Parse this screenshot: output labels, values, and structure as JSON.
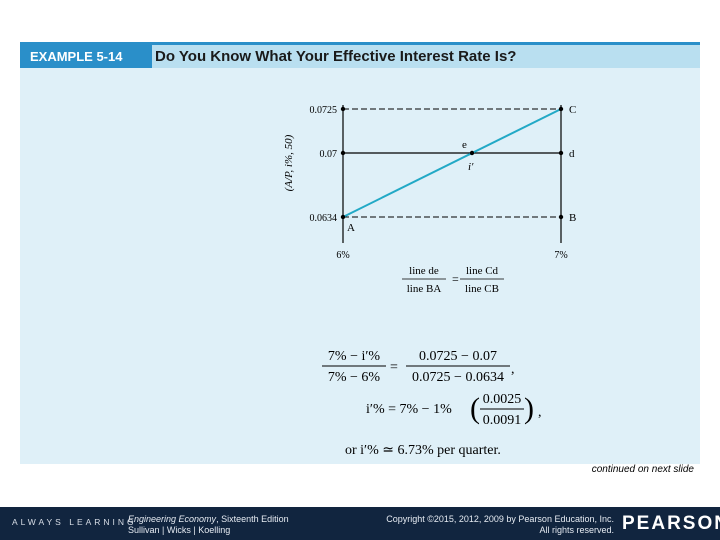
{
  "header": {
    "example_label": "EXAMPLE 5-14",
    "title": "Do You Know What Your Effective Interest Rate Is?"
  },
  "diagram": {
    "y_axis_label": "(A/P, i%, 50)",
    "y_ticks": [
      "0.0725",
      "0.07",
      "0.0634"
    ],
    "x_ticks": [
      "6%",
      "7%"
    ],
    "point_labels": {
      "A": "A",
      "B": "B",
      "C": "C",
      "d": "d",
      "e": "e",
      "i_prime": "i′"
    },
    "ratio": {
      "left_num": "line de",
      "left_den": "line BA",
      "eq": "=",
      "right_num": "line Cd",
      "right_den": "line CB"
    },
    "line_color": "#22a9c6"
  },
  "equations": {
    "eq1_left_num": "7% − i′%",
    "eq1_left_den": "7% − 6%",
    "eq1_right_num": "0.0725 − 0.07",
    "eq1_right_den": "0.0725 − 0.0634",
    "eq2_left": "i′% = 7% − 1%",
    "eq2_num": "0.0025",
    "eq2_den": "0.0091",
    "eq3": "or i′% ≃ 6.73% per quarter."
  },
  "continued": "continued on next slide",
  "footer": {
    "always_learning": "ALWAYS LEARNING",
    "book_title": "Engineering Economy",
    "book_edition": ", Sixteenth Edition",
    "authors": "Sullivan | Wicks | Koelling",
    "copyright_line1": "Copyright ©2015, 2012, 2009 by Pearson Education, Inc.",
    "copyright_line2": "All rights reserved.",
    "brand": "PEARSON"
  }
}
